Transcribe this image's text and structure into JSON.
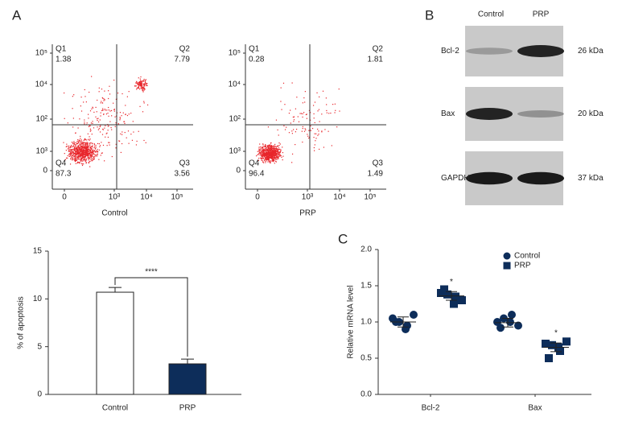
{
  "panel_labels": [
    "A",
    "B",
    "C"
  ],
  "blot": {
    "lanes": [
      "Control",
      "PRP"
    ],
    "rows": [
      {
        "name": "Bcl-2",
        "size": "26 kDa"
      },
      {
        "name": "Bax",
        "size": "20 kDa"
      },
      {
        "name": "GAPDH",
        "size": "37 kDa"
      }
    ]
  },
  "chart_data": [
    {
      "type": "flow",
      "xlabel": "Control",
      "quadrants": [
        {
          "name": "Q1",
          "value": 1.38
        },
        {
          "name": "Q2",
          "value": 7.79
        },
        {
          "name": "Q3",
          "value": 3.56
        },
        {
          "name": "Q4",
          "value": 87.3
        }
      ],
      "yticks": [
        {
          "value": 100000,
          "label": "10⁵"
        },
        {
          "value": 10000,
          "label": "10⁴"
        },
        {
          "value": 100,
          "label": "10²"
        },
        {
          "value": 1000,
          "label": "10³"
        },
        0
      ],
      "xticks": [
        0,
        {
          "value": 1000,
          "label": "10³"
        },
        {
          "value": 10000,
          "label": "10⁴"
        },
        {
          "value": 100000,
          "label": "10⁵"
        }
      ],
      "color": "#e8262b"
    },
    {
      "type": "flow",
      "xlabel": "PRP",
      "quadrants": [
        {
          "name": "Q1",
          "value": 0.28
        },
        {
          "name": "Q2",
          "value": 1.81
        },
        {
          "name": "Q3",
          "value": 1.49
        },
        {
          "name": "Q4",
          "value": 96.4
        }
      ],
      "yticks": [
        {
          "value": 100000,
          "label": "10⁵"
        },
        {
          "value": 10000,
          "label": "10⁴"
        },
        {
          "value": 100,
          "label": "10²"
        },
        {
          "value": 1000,
          "label": "10³"
        },
        0
      ],
      "xticks": [
        0,
        {
          "value": 1000,
          "label": "10³"
        },
        {
          "value": 10000,
          "label": "10⁴"
        },
        {
          "value": 100000,
          "label": "10⁵"
        }
      ],
      "color": "#e8262b"
    },
    {
      "type": "bar",
      "ylabel": "% of apoptosis",
      "categories": [
        "Control",
        "PRP"
      ],
      "values": [
        10.7,
        3.2
      ],
      "errors": [
        0.5,
        0.5
      ],
      "colors": [
        "#ffffff",
        "#0d2d5a"
      ],
      "ylim": [
        0,
        15
      ],
      "yticks": [
        0,
        5,
        10,
        15
      ],
      "annotation": "****"
    },
    {
      "type": "dot",
      "ylabel": "Relative mRNA level",
      "categories": [
        "Bcl-2",
        "Bax"
      ],
      "ylim": [
        0,
        2
      ],
      "yticks": [
        {
          "value": 0,
          "label": "0.0"
        },
        {
          "value": 0.5,
          "label": "0.5"
        },
        {
          "value": 1,
          "label": "1.0"
        },
        {
          "value": 1.5,
          "label": "1.5"
        },
        {
          "value": 2,
          "label": "2.0"
        }
      ],
      "series": [
        {
          "name": "Control",
          "color": "#0d2d5a",
          "marker": "circle",
          "values": [
            [
              1.05,
              1.0,
              0.95,
              1.1,
              1.0,
              0.9
            ],
            [
              1.0,
              1.05,
              1.1,
              0.95,
              0.92,
              1.0
            ]
          ],
          "means": [
            1.0,
            0.99
          ],
          "errors": [
            0.07,
            0.06
          ]
        },
        {
          "name": "PRP",
          "color": "#0d2d5a",
          "marker": "square",
          "values": [
            [
              1.4,
              1.38,
              1.35,
              1.3,
              1.45,
              1.25
            ],
            [
              0.7,
              0.68,
              0.6,
              0.73,
              0.5,
              0.65
            ]
          ],
          "means": [
            1.36,
            0.65
          ],
          "errors": [
            0.06,
            0.06
          ],
          "annotations": [
            "*",
            "*"
          ]
        }
      ]
    }
  ]
}
